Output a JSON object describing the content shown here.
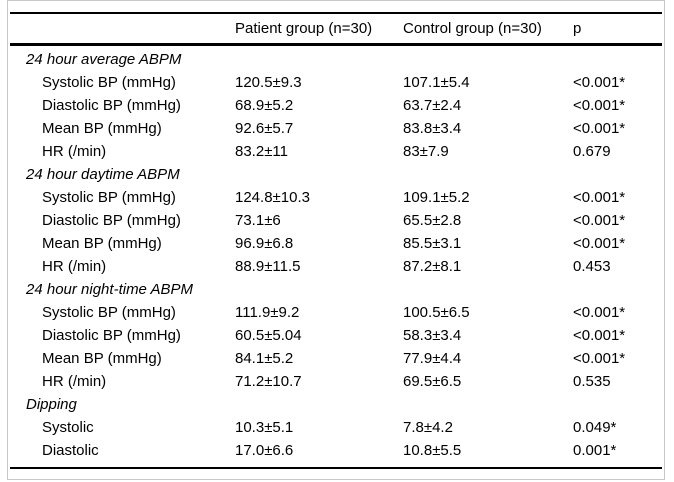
{
  "table": {
    "header": {
      "col_label": "",
      "col_patient": "Patient group (n=30)",
      "col_control": "Control group (n=30)",
      "col_p": "p"
    },
    "rows": [
      {
        "type": "section",
        "label": "24 hour average ABPM",
        "patient": "",
        "control": "",
        "p": ""
      },
      {
        "type": "data",
        "label": "Systolic BP (mmHg)",
        "patient": "120.5±9.3",
        "control": "107.1±5.4",
        "p": "<0.001*"
      },
      {
        "type": "data",
        "label": "Diastolic BP (mmHg)",
        "patient": "68.9±5.2",
        "control": "63.7±2.4",
        "p": "<0.001*"
      },
      {
        "type": "data",
        "label": "Mean BP (mmHg)",
        "patient": "92.6±5.7",
        "control": "83.8±3.4",
        "p": "<0.001*"
      },
      {
        "type": "data",
        "label": "HR (/min)",
        "patient": "83.2±11",
        "control": "83±7.9",
        "p": "0.679"
      },
      {
        "type": "section",
        "label": "24 hour daytime ABPM",
        "patient": "",
        "control": "",
        "p": ""
      },
      {
        "type": "data",
        "label": "Systolic BP (mmHg)",
        "patient": "124.8±10.3",
        "control": "109.1±5.2",
        "p": "<0.001*"
      },
      {
        "type": "data",
        "label": "Diastolic BP (mmHg)",
        "patient": "73.1±6",
        "control": "65.5±2.8",
        "p": "<0.001*"
      },
      {
        "type": "data",
        "label": "Mean BP (mmHg)",
        "patient": "96.9±6.8",
        "control": "85.5±3.1",
        "p": "<0.001*"
      },
      {
        "type": "data",
        "label": "HR (/min)",
        "patient": "88.9±11.5",
        "control": "87.2±8.1",
        "p": "0.453"
      },
      {
        "type": "section",
        "label": "24 hour night-time ABPM",
        "patient": "",
        "control": "",
        "p": ""
      },
      {
        "type": "data",
        "label": "Systolic BP (mmHg)",
        "patient": "111.9±9.2",
        "control": "100.5±6.5",
        "p": "<0.001*"
      },
      {
        "type": "data",
        "label": "Diastolic BP (mmHg)",
        "patient": "60.5±5.04",
        "control": "58.3±3.4",
        "p": "<0.001*"
      },
      {
        "type": "data",
        "label": "Mean BP (mmHg)",
        "patient": "84.1±5.2",
        "control": "77.9±4.4",
        "p": "<0.001*"
      },
      {
        "type": "data",
        "label": "HR (/min)",
        "patient": "71.2±10.7",
        "control": "69.5±6.5",
        "p": "0.535"
      },
      {
        "type": "section",
        "label": "Dipping",
        "patient": "",
        "control": "",
        "p": ""
      },
      {
        "type": "data",
        "label": "Systolic",
        "patient": "10.3±5.1",
        "control": "7.8±4.2",
        "p": "0.049*"
      },
      {
        "type": "data",
        "label": "Diastolic",
        "patient": "17.0±6.6",
        "control": "10.8±5.5",
        "p": "0.001*"
      }
    ]
  },
  "colors": {
    "background": "#ffffff",
    "text": "#000000",
    "rule": "#000000",
    "frame": "#c9c9c9"
  }
}
